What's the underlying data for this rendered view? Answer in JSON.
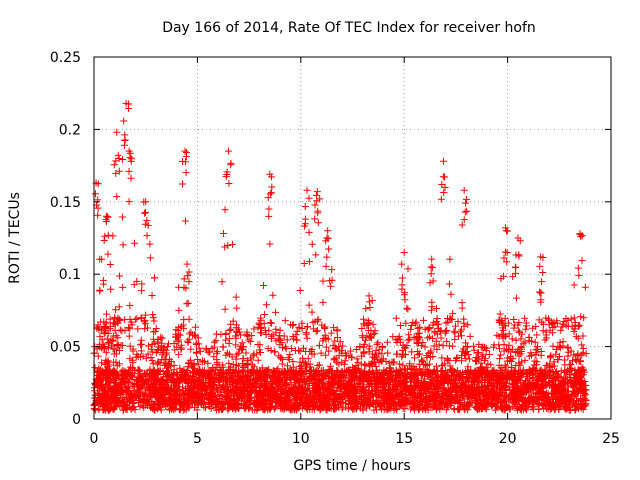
{
  "chart_data": {
    "type": "scatter",
    "title": "Day 166 of 2014, Rate Of TEC Index for receiver hofn",
    "xlabel": "GPS time / hours",
    "ylabel": "ROTI / TECUs",
    "xlim": [
      0,
      25
    ],
    "ylim": [
      0,
      0.25
    ],
    "xticks": [
      0,
      5,
      10,
      15,
      20,
      25
    ],
    "yticks": [
      0,
      0.05,
      0.1,
      0.15,
      0.2,
      0.25
    ],
    "xtick_labels": [
      "0",
      "5",
      "10",
      "15",
      "20",
      "25"
    ],
    "ytick_labels": [
      "0",
      "0.05",
      "0.1",
      "0.15",
      "0.2",
      "0.25"
    ],
    "grid": true,
    "marker": "+",
    "marker_color": "#ff0000",
    "series": [
      {
        "name": "ROTI",
        "description": "dense scatter of 5-min ROTI samples over 0-23.8 h; base level ~0.01-0.05 with spikes",
        "peaks": [
          {
            "x": 0.1,
            "y": 0.163
          },
          {
            "x": 0.6,
            "y": 0.14
          },
          {
            "x": 1.1,
            "y": 0.198
          },
          {
            "x": 1.55,
            "y": 0.218
          },
          {
            "x": 1.7,
            "y": 0.185
          },
          {
            "x": 2.5,
            "y": 0.15
          },
          {
            "x": 4.4,
            "y": 0.185
          },
          {
            "x": 4.5,
            "y": 0.107
          },
          {
            "x": 6.5,
            "y": 0.185
          },
          {
            "x": 8.5,
            "y": 0.169
          },
          {
            "x": 10.3,
            "y": 0.158
          },
          {
            "x": 10.8,
            "y": 0.157
          },
          {
            "x": 11.3,
            "y": 0.13
          },
          {
            "x": 13.3,
            "y": 0.085
          },
          {
            "x": 15.0,
            "y": 0.115
          },
          {
            "x": 16.3,
            "y": 0.105
          },
          {
            "x": 16.9,
            "y": 0.178
          },
          {
            "x": 17.9,
            "y": 0.158
          },
          {
            "x": 19.9,
            "y": 0.132
          },
          {
            "x": 20.5,
            "y": 0.125
          },
          {
            "x": 21.6,
            "y": 0.112
          },
          {
            "x": 23.5,
            "y": 0.128
          }
        ]
      }
    ]
  }
}
